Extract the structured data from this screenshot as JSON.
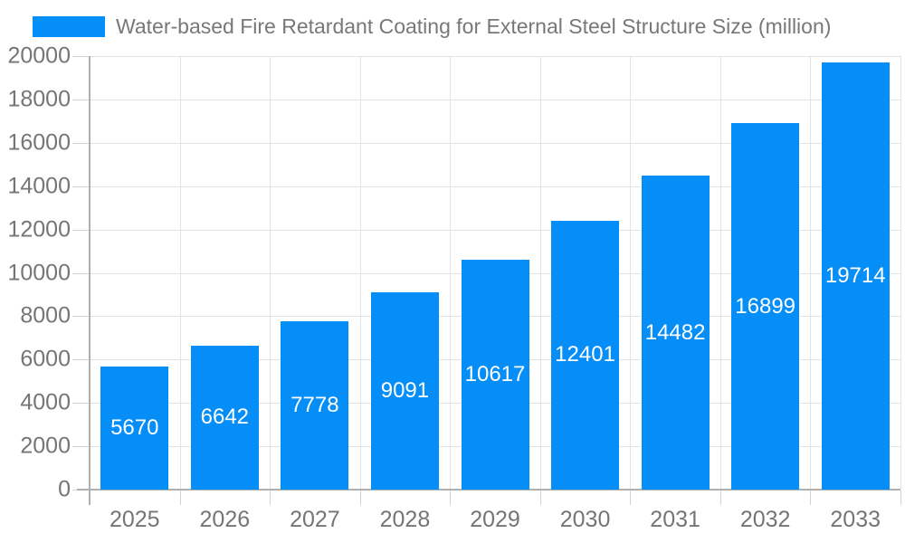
{
  "legend": {
    "label": "Water-based Fire Retardant Coating for External Steel Structure Size (million)"
  },
  "chart_data": {
    "type": "bar",
    "title": "Water-based Fire Retardant Coating for External Steel Structure Size (million)",
    "categories": [
      "2025",
      "2026",
      "2027",
      "2028",
      "2029",
      "2030",
      "2031",
      "2032",
      "2033"
    ],
    "values": [
      5670,
      6642,
      7778,
      9091,
      10617,
      12401,
      14482,
      16899,
      19714
    ],
    "xlabel": "",
    "ylabel": "",
    "ylim": [
      0,
      20000
    ],
    "ytick_step": 2000,
    "ytick_labels": [
      "0",
      "2000",
      "4000",
      "6000",
      "8000",
      "10000",
      "12000",
      "14000",
      "16000",
      "18000",
      "20000"
    ],
    "grid": true,
    "legend_position": "top-left",
    "value_labels_inside": true,
    "colors": {
      "bar": "#058ef7",
      "value_label": "#ffffff",
      "grid": "#e4e4e4",
      "axis": "#b0b0b0",
      "tick_mark": "#d2d2d2",
      "tick_text": "#757575",
      "title_text": "#787878",
      "background": "#ffffff"
    }
  }
}
